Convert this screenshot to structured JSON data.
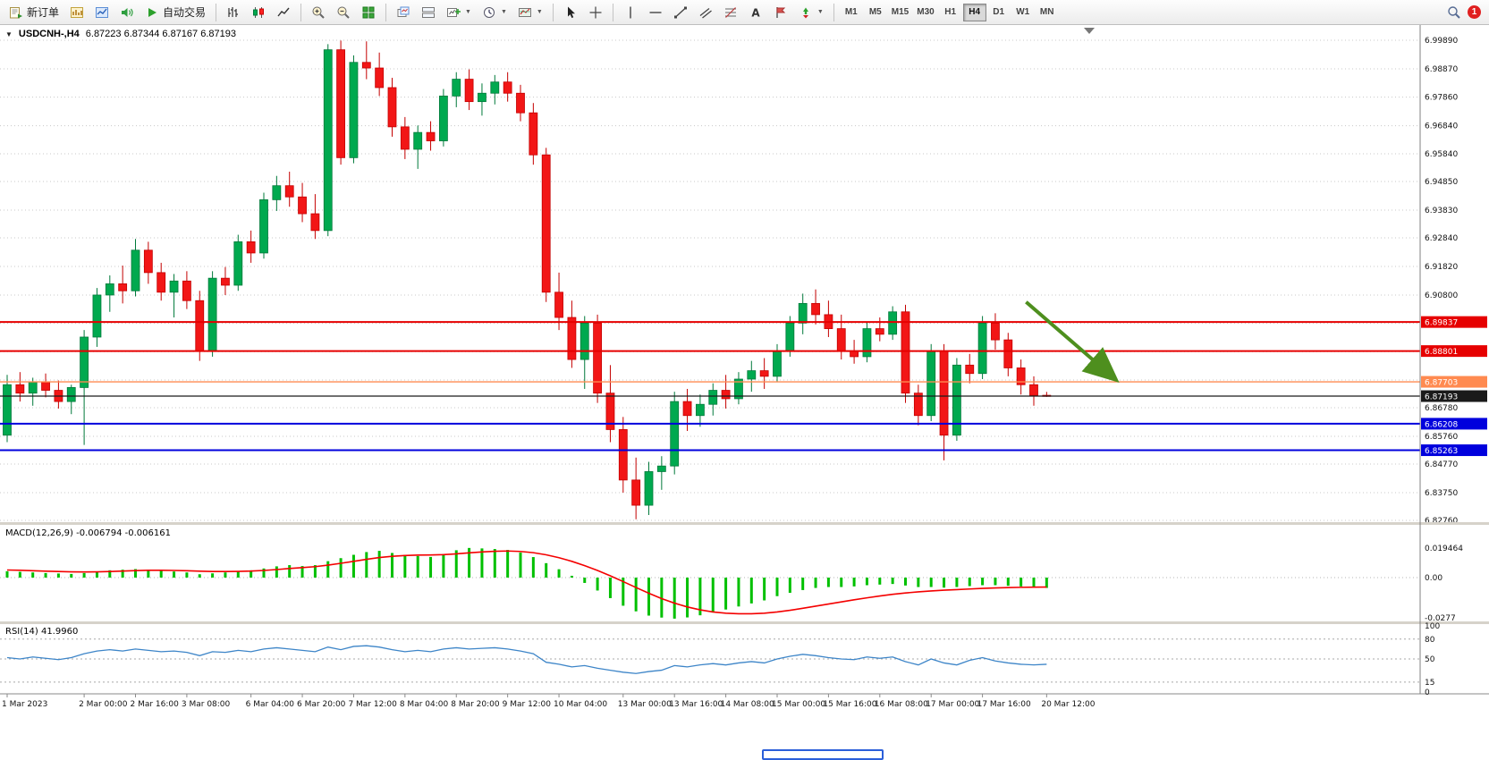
{
  "toolbar": {
    "new_order_label": "新订单",
    "auto_trading_label": "自动交易",
    "timeframes": [
      "M1",
      "M5",
      "M15",
      "M30",
      "H1",
      "H4",
      "D1",
      "W1",
      "MN"
    ],
    "active_timeframe": "H4",
    "notification_badge": "1"
  },
  "chart": {
    "symbol_title": "USDCNH-,H4",
    "ohlc_text": "6.87223 6.87344 6.87167 6.87193"
  },
  "chart_data": {
    "type": "candlestick",
    "title": "USDCNH-,H4",
    "current_ohlc": {
      "open": 6.87223,
      "high": 6.87344,
      "low": 6.87167,
      "close": 6.87193
    },
    "y_axis": {
      "min": 6.8276,
      "max": 6.9989,
      "gridline_prices": [
        6.9989,
        6.9887,
        6.9786,
        6.9684,
        6.9584,
        6.9485,
        6.9383,
        6.9284,
        6.9182,
        6.908,
        6.8979,
        6.8878,
        6.8777,
        6.8678,
        6.8576,
        6.8477,
        6.8375,
        6.8276
      ]
    },
    "x_labels": [
      {
        "label": "1 Mar 2023",
        "index": 0
      },
      {
        "label": "2 Mar 00:00",
        "index": 6
      },
      {
        "label": "2 Mar 16:00",
        "index": 10
      },
      {
        "label": "3 Mar 08:00",
        "index": 14
      },
      {
        "label": "6 Mar 04:00",
        "index": 19
      },
      {
        "label": "6 Mar 20:00",
        "index": 23
      },
      {
        "label": "7 Mar 12:00",
        "index": 27
      },
      {
        "label": "8 Mar 04:00",
        "index": 31
      },
      {
        "label": "8 Mar 20:00",
        "index": 35
      },
      {
        "label": "9 Mar 12:00",
        "index": 39
      },
      {
        "label": "10 Mar 04:00",
        "index": 43
      },
      {
        "label": "13 Mar 00:00",
        "index": 48
      },
      {
        "label": "13 Mar 16:00",
        "index": 52
      },
      {
        "label": "14 Mar 08:00",
        "index": 56
      },
      {
        "label": "15 Mar 00:00",
        "index": 60
      },
      {
        "label": "15 Mar 16:00",
        "index": 64
      },
      {
        "label": "16 Mar 08:00",
        "index": 68
      },
      {
        "label": "17 Mar 00:00",
        "index": 72
      },
      {
        "label": "17 Mar 16:00",
        "index": 76
      },
      {
        "label": "20 Mar 12:00",
        "index": 81
      }
    ],
    "candles": [
      [
        6.858,
        6.8795,
        6.8555,
        6.876
      ],
      [
        6.876,
        6.8805,
        6.87,
        6.873
      ],
      [
        6.873,
        6.8785,
        6.8685,
        6.877
      ],
      [
        6.877,
        6.88,
        6.8715,
        6.874
      ],
      [
        6.874,
        6.8775,
        6.8675,
        6.87
      ],
      [
        6.87,
        6.876,
        6.8655,
        6.875
      ],
      [
        6.875,
        6.8955,
        6.8545,
        6.893
      ],
      [
        6.893,
        6.9105,
        6.8895,
        6.908
      ],
      [
        6.908,
        6.915,
        6.902,
        6.912
      ],
      [
        6.912,
        6.9185,
        6.905,
        6.9095
      ],
      [
        6.9095,
        6.928,
        6.9075,
        6.924
      ],
      [
        6.924,
        6.927,
        6.912,
        6.916
      ],
      [
        6.916,
        6.9195,
        6.906,
        6.909
      ],
      [
        6.909,
        6.9155,
        6.9,
        6.913
      ],
      [
        6.913,
        6.9165,
        6.903,
        6.906
      ],
      [
        6.906,
        6.9095,
        6.8845,
        6.888
      ],
      [
        6.888,
        6.9165,
        6.886,
        6.914
      ],
      [
        6.914,
        6.918,
        6.908,
        6.9115
      ],
      [
        6.9115,
        6.9295,
        6.9095,
        6.927
      ],
      [
        6.927,
        6.931,
        6.9195,
        6.923
      ],
      [
        6.923,
        6.9445,
        6.921,
        6.942
      ],
      [
        6.942,
        6.9505,
        6.938,
        6.947
      ],
      [
        6.947,
        6.952,
        6.9395,
        6.943
      ],
      [
        6.943,
        6.948,
        6.934,
        6.937
      ],
      [
        6.937,
        6.944,
        6.928,
        6.931
      ],
      [
        6.931,
        6.9975,
        6.929,
        6.9955
      ],
      [
        6.9955,
        6.9988,
        6.9545,
        6.957
      ],
      [
        6.957,
        6.9935,
        6.955,
        6.991
      ],
      [
        6.991,
        6.9985,
        6.985,
        6.989
      ],
      [
        6.989,
        6.9945,
        6.979,
        6.982
      ],
      [
        6.982,
        6.9855,
        6.9645,
        6.968
      ],
      [
        6.968,
        6.9715,
        6.9565,
        6.96
      ],
      [
        6.96,
        6.9685,
        6.953,
        6.966
      ],
      [
        6.966,
        6.97,
        6.9595,
        6.963
      ],
      [
        6.963,
        6.9815,
        6.961,
        6.979
      ],
      [
        6.979,
        6.9875,
        6.975,
        6.985
      ],
      [
        6.985,
        6.9885,
        6.974,
        6.977
      ],
      [
        6.977,
        6.9835,
        6.972,
        6.98
      ],
      [
        6.98,
        6.9865,
        6.976,
        6.984
      ],
      [
        6.984,
        6.9875,
        6.977,
        6.98
      ],
      [
        6.98,
        6.983,
        6.97,
        6.973
      ],
      [
        6.973,
        6.9765,
        6.9545,
        6.958
      ],
      [
        6.958,
        6.9605,
        6.9055,
        6.909
      ],
      [
        6.909,
        6.916,
        6.8955,
        6.9
      ],
      [
        6.9,
        6.906,
        6.882,
        6.885
      ],
      [
        6.885,
        6.9005,
        6.8745,
        6.898
      ],
      [
        6.898,
        6.901,
        6.8695,
        6.873
      ],
      [
        6.873,
        6.883,
        6.8555,
        6.86
      ],
      [
        6.86,
        6.8645,
        6.8375,
        6.842
      ],
      [
        6.842,
        6.85,
        6.828,
        6.833
      ],
      [
        6.833,
        6.8485,
        6.8295,
        6.845
      ],
      [
        6.845,
        6.8505,
        6.8385,
        6.847
      ],
      [
        6.847,
        6.8735,
        6.844,
        6.87
      ],
      [
        6.87,
        6.8745,
        6.8595,
        6.865
      ],
      [
        6.865,
        6.8725,
        6.861,
        6.869
      ],
      [
        6.869,
        6.8765,
        6.865,
        6.874
      ],
      [
        6.874,
        6.8795,
        6.8675,
        6.871
      ],
      [
        6.871,
        6.8805,
        6.869,
        6.878
      ],
      [
        6.878,
        6.8845,
        6.8735,
        6.881
      ],
      [
        6.881,
        6.8855,
        6.8745,
        6.879
      ],
      [
        6.879,
        6.8905,
        6.877,
        6.888
      ],
      [
        6.888,
        6.9005,
        6.886,
        6.898
      ],
      [
        6.898,
        6.9085,
        6.894,
        6.905
      ],
      [
        6.905,
        6.91,
        6.8975,
        6.901
      ],
      [
        6.901,
        6.906,
        6.893,
        6.896
      ],
      [
        6.896,
        6.901,
        6.885,
        6.888
      ],
      [
        6.888,
        6.892,
        6.8835,
        6.886
      ],
      [
        6.886,
        6.8985,
        6.884,
        6.896
      ],
      [
        6.896,
        6.9,
        6.8915,
        6.894
      ],
      [
        6.894,
        6.904,
        6.892,
        6.902
      ],
      [
        6.902,
        6.9045,
        6.8695,
        6.873
      ],
      [
        6.873,
        6.876,
        6.8615,
        6.865
      ],
      [
        6.865,
        6.8905,
        6.863,
        6.888
      ],
      [
        6.888,
        6.8905,
        6.849,
        6.858
      ],
      [
        6.858,
        6.8855,
        6.856,
        6.883
      ],
      [
        6.883,
        6.887,
        6.8765,
        6.88
      ],
      [
        6.88,
        6.9005,
        6.878,
        6.898
      ],
      [
        6.898,
        6.9015,
        6.8885,
        6.892
      ],
      [
        6.892,
        6.8945,
        6.879,
        6.882
      ],
      [
        6.882,
        6.885,
        6.8725,
        6.876
      ],
      [
        6.876,
        6.879,
        6.8685,
        6.8722
      ],
      [
        6.87223,
        6.87344,
        6.87167,
        6.87193
      ]
    ],
    "levels": [
      {
        "name": "resistance-line-1",
        "price": 6.89837,
        "label": "6.89837",
        "color": "#e60000",
        "width": 2
      },
      {
        "name": "resistance-line-2",
        "price": 6.88801,
        "label": "6.88801",
        "color": "#e60000",
        "width": 2
      },
      {
        "name": "pivot-line",
        "price": 6.87703,
        "label": "6.87703",
        "color": "#ff8a50",
        "width": 1.4
      },
      {
        "name": "current-price-line",
        "price": 6.87193,
        "label": "6.87193",
        "color": "#1a1a1a",
        "width": 1.2,
        "current": true
      },
      {
        "name": "support-line-1",
        "price": 6.86208,
        "label": "6.86208",
        "color": "#0000dd",
        "width": 2
      },
      {
        "name": "support-line-2",
        "price": 6.85263,
        "label": "6.85263",
        "color": "#0000dd",
        "width": 2
      }
    ],
    "trend_arrow": {
      "from_index": 79.4,
      "from_price": 6.9055,
      "to_index": 86.8,
      "to_price": 6.8765,
      "color": "#4e8f1e"
    },
    "colors": {
      "up": "#00a94f",
      "up_stroke": "#00793a",
      "down": "#f21616",
      "down_stroke": "#c40000",
      "grid": "#c8c8c8"
    },
    "macd": {
      "label": "MACD(12,26,9)",
      "value_main": "-0.006794",
      "value_signal": "-0.006161",
      "scale": {
        "max_label": "0.019464",
        "zero_label": "0.00",
        "min_label": "-0.0277",
        "max": 0.019464,
        "min": -0.0277
      },
      "histogram_color": "#00c000",
      "signal_color": "#f40000",
      "histogram": [
        0.0042,
        0.0038,
        0.0034,
        0.003,
        0.0027,
        0.0024,
        0.003,
        0.004,
        0.0048,
        0.0052,
        0.0056,
        0.0052,
        0.0046,
        0.004,
        0.0034,
        0.0022,
        0.0028,
        0.0034,
        0.0042,
        0.0048,
        0.006,
        0.0074,
        0.0082,
        0.0076,
        0.0082,
        0.0108,
        0.0128,
        0.015,
        0.0168,
        0.0176,
        0.0162,
        0.015,
        0.0142,
        0.0136,
        0.0155,
        0.018,
        0.0195,
        0.0192,
        0.0188,
        0.0182,
        0.0165,
        0.0135,
        0.0095,
        0.0055,
        0.0012,
        -0.0035,
        -0.0085,
        -0.0135,
        -0.0185,
        -0.0222,
        -0.025,
        -0.0263,
        -0.027,
        -0.0262,
        -0.0248,
        -0.023,
        -0.021,
        -0.019,
        -0.017,
        -0.015,
        -0.0122,
        -0.01,
        -0.0082,
        -0.0068,
        -0.0062,
        -0.0062,
        -0.0058,
        -0.005,
        -0.0046,
        -0.0042,
        -0.0052,
        -0.0062,
        -0.0062,
        -0.0066,
        -0.0062,
        -0.0056,
        -0.005,
        -0.005,
        -0.0054,
        -0.0058,
        -0.0062,
        -0.0068
      ],
      "signal": [
        0.005,
        0.0048,
        0.0045,
        0.0042,
        0.004,
        0.0038,
        0.0037,
        0.0038,
        0.004,
        0.0043,
        0.0046,
        0.0048,
        0.0048,
        0.0047,
        0.0045,
        0.0042,
        0.004,
        0.004,
        0.0041,
        0.0043,
        0.0047,
        0.0053,
        0.006,
        0.0066,
        0.0072,
        0.0082,
        0.0094,
        0.0107,
        0.012,
        0.0132,
        0.014,
        0.0145,
        0.0148,
        0.0149,
        0.0151,
        0.0156,
        0.0163,
        0.0169,
        0.0173,
        0.0175,
        0.0172,
        0.0164,
        0.015,
        0.0131,
        0.0107,
        0.0079,
        0.0047,
        0.0012,
        -0.0026,
        -0.0065,
        -0.0103,
        -0.0138,
        -0.0168,
        -0.0193,
        -0.0212,
        -0.0226,
        -0.0234,
        -0.0238,
        -0.0238,
        -0.0234,
        -0.0226,
        -0.0215,
        -0.0202,
        -0.0188,
        -0.0174,
        -0.016,
        -0.0146,
        -0.0133,
        -0.0121,
        -0.011,
        -0.0101,
        -0.0094,
        -0.0088,
        -0.0083,
        -0.0079,
        -0.0075,
        -0.0071,
        -0.0068,
        -0.0066,
        -0.0064,
        -0.0063,
        -0.0062
      ]
    },
    "rsi": {
      "label": "RSI(14)",
      "value": "41.9960",
      "line_color": "#3d85c8",
      "levels": [
        80,
        50,
        15
      ],
      "scale_labels": [
        "100",
        "80",
        "50",
        "15",
        "0"
      ],
      "values": [
        52,
        50,
        53,
        51,
        49,
        52,
        58,
        62,
        64,
        62,
        65,
        63,
        61,
        62,
        60,
        55,
        61,
        60,
        63,
        61,
        65,
        67,
        65,
        63,
        61,
        68,
        64,
        69,
        70,
        68,
        64,
        61,
        63,
        61,
        65,
        67,
        65,
        66,
        67,
        65,
        62,
        58,
        45,
        42,
        38,
        40,
        36,
        33,
        30,
        28,
        31,
        33,
        40,
        38,
        41,
        43,
        41,
        44,
        46,
        44,
        50,
        54,
        57,
        55,
        52,
        50,
        49,
        53,
        51,
        53,
        46,
        41,
        50,
        44,
        41,
        48,
        52,
        47,
        44,
        42,
        41,
        42
      ]
    }
  }
}
